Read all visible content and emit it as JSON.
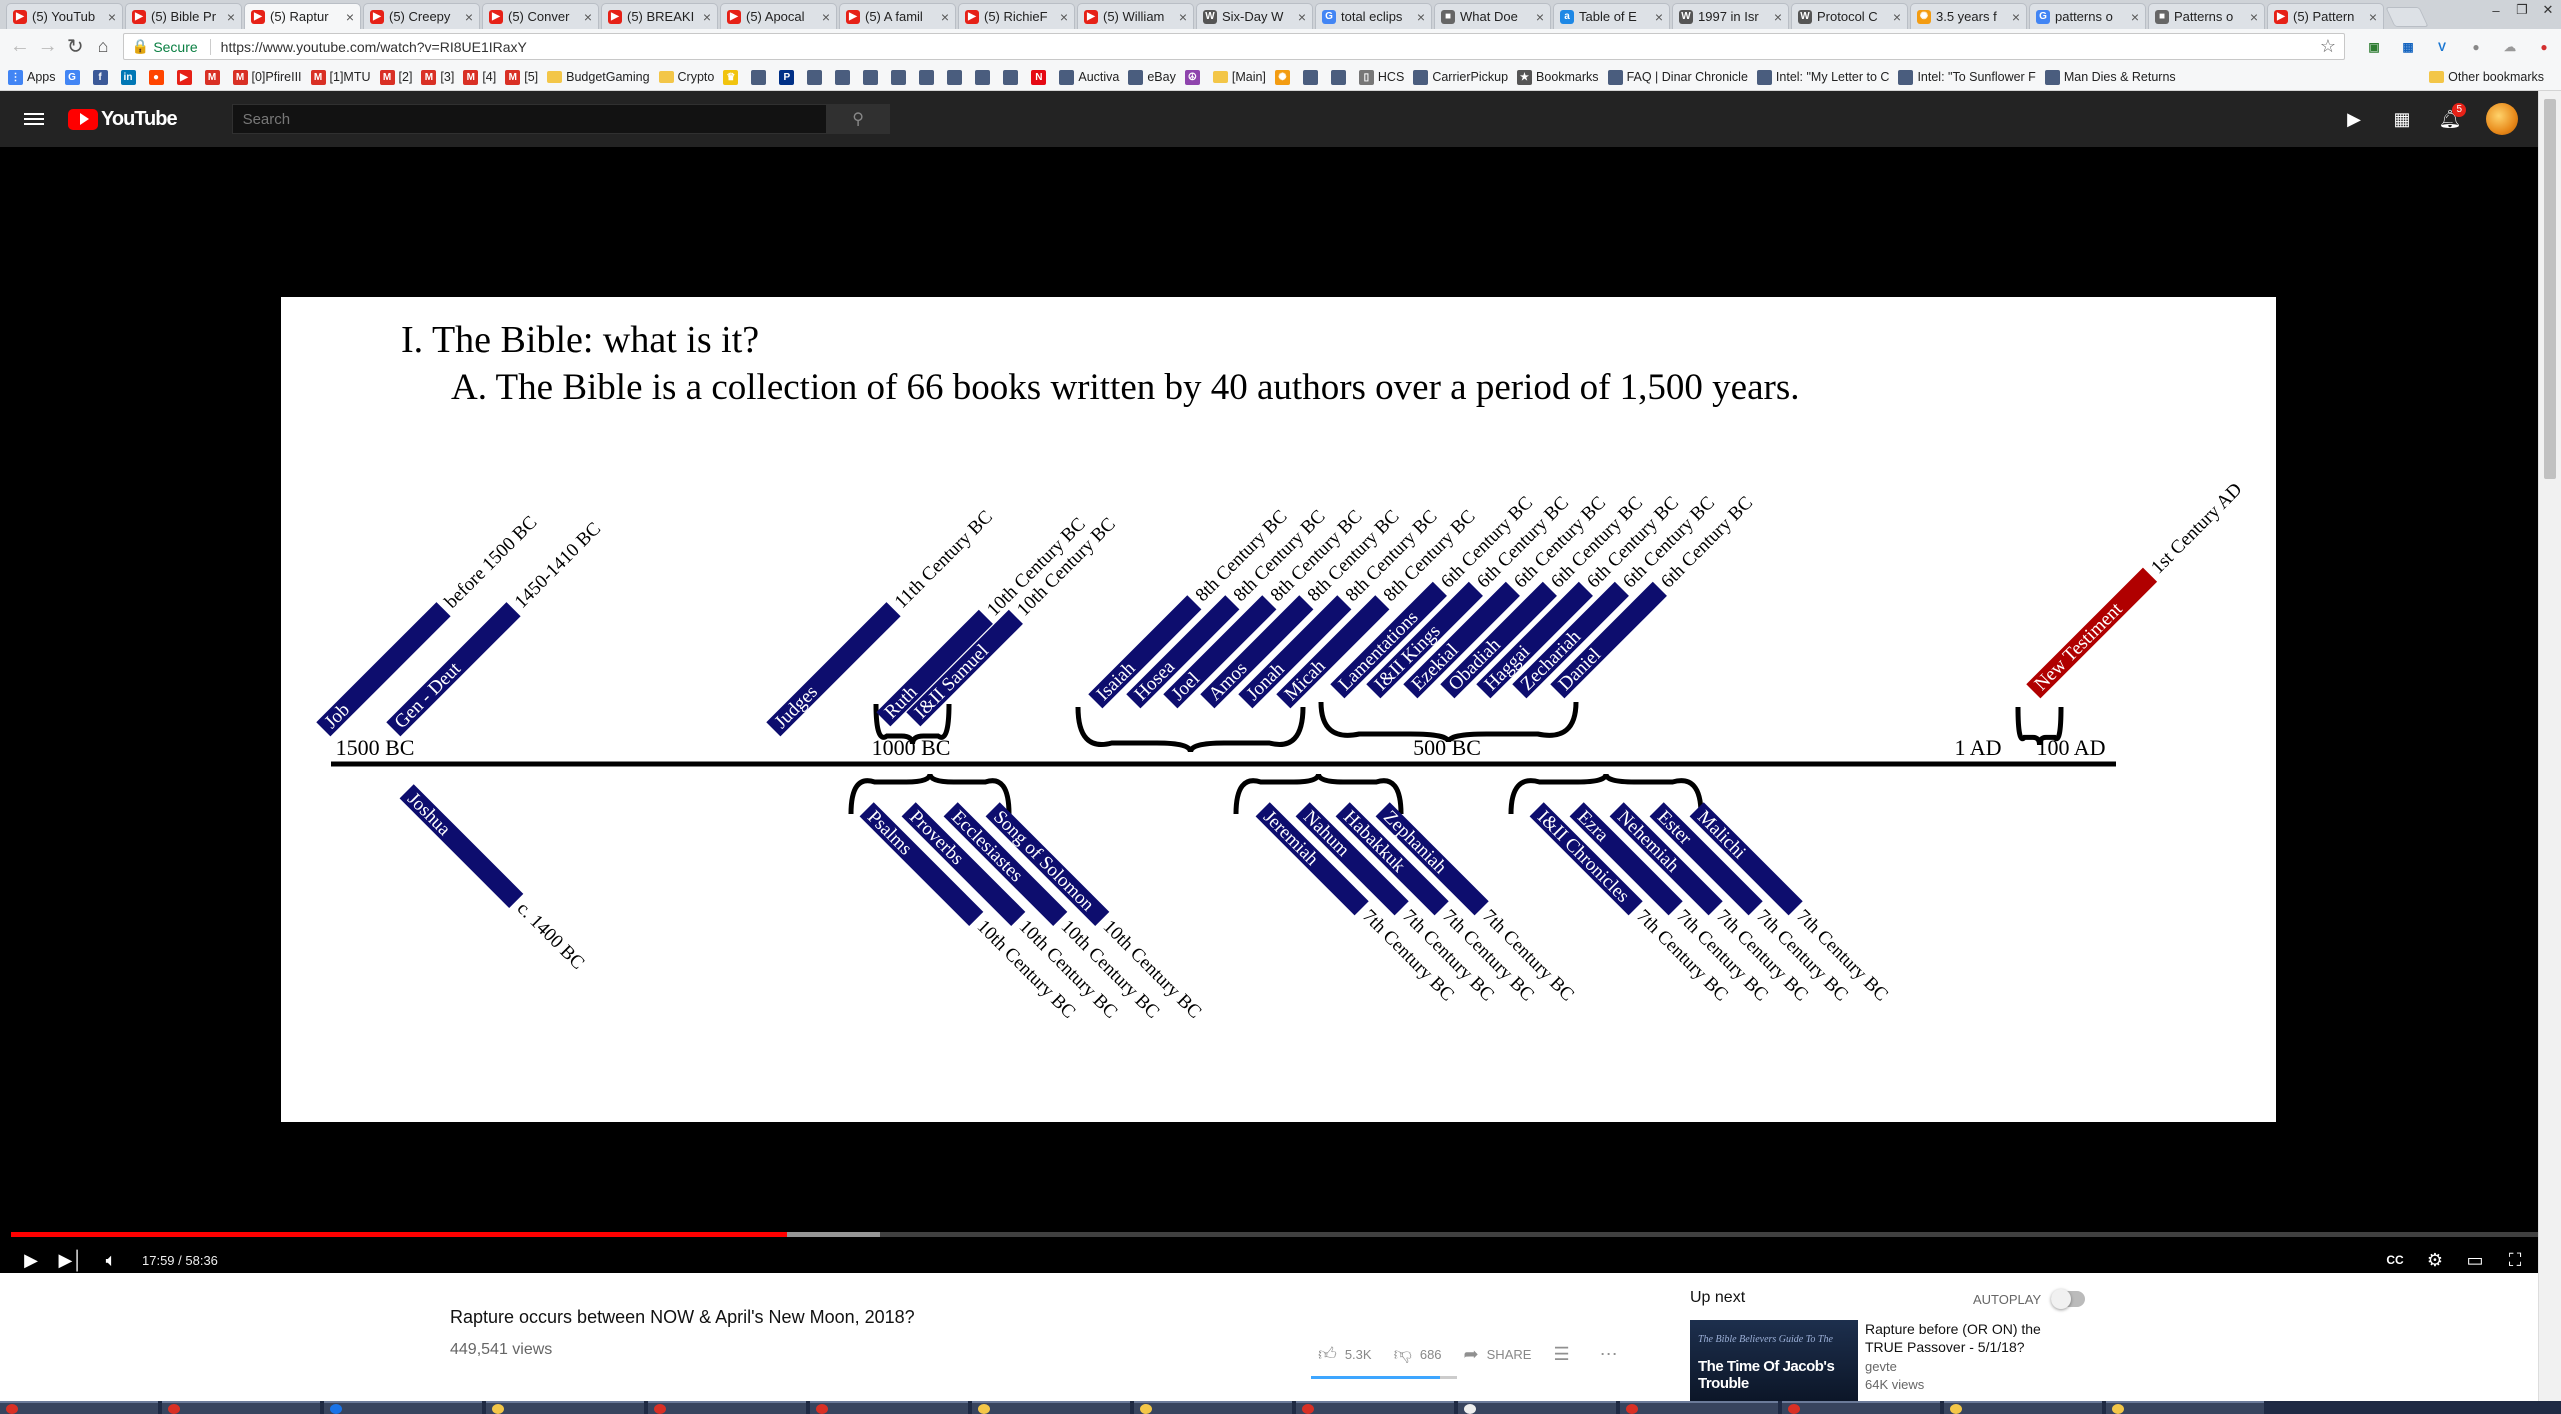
{
  "browser": {
    "tabs": [
      {
        "title": "(5) YouTub",
        "favicon": "youtube-icon",
        "active": false
      },
      {
        "title": "(5) Bible Pr",
        "favicon": "youtube-icon",
        "active": false
      },
      {
        "title": "(5) Raptur",
        "favicon": "youtube-icon",
        "active": true
      },
      {
        "title": "(5) Creepy",
        "favicon": "youtube-icon",
        "active": false
      },
      {
        "title": "(5) Conver",
        "favicon": "youtube-icon",
        "active": false
      },
      {
        "title": "(5) BREAKI",
        "favicon": "youtube-icon",
        "active": false
      },
      {
        "title": "(5) Apocal",
        "favicon": "youtube-icon",
        "active": false
      },
      {
        "title": "(5) A famil",
        "favicon": "youtube-icon",
        "active": false
      },
      {
        "title": "(5) RichieF",
        "favicon": "youtube-icon",
        "active": false
      },
      {
        "title": "(5) William",
        "favicon": "youtube-icon",
        "active": false
      },
      {
        "title": "Six-Day W",
        "favicon": "wikipedia-icon",
        "active": false
      },
      {
        "title": "total eclips",
        "favicon": "google-icon",
        "active": false
      },
      {
        "title": "What Doe",
        "favicon": "site-icon",
        "active": false
      },
      {
        "title": "Table of E",
        "favicon": "az-icon",
        "active": false
      },
      {
        "title": "1997 in Isr",
        "favicon": "wikipedia-icon",
        "active": false
      },
      {
        "title": "Protocol C",
        "favicon": "wikipedia-icon",
        "active": false
      },
      {
        "title": "3.5 years f",
        "favicon": "sun-icon",
        "active": false
      },
      {
        "title": "patterns o",
        "favicon": "google-icon",
        "active": false
      },
      {
        "title": "Patterns o",
        "favicon": "site-icon",
        "active": false
      },
      {
        "title": "(5) Pattern",
        "favicon": "youtube-icon",
        "active": false
      }
    ],
    "secure_label": "Secure",
    "url": "https://www.youtube.com/watch?v=RI8UE1IRaxY",
    "bookmarks": [
      {
        "label": "Apps",
        "icon": "apps-icon"
      },
      {
        "label": "",
        "icon": "google-icon"
      },
      {
        "label": "",
        "icon": "facebook-icon"
      },
      {
        "label": "",
        "icon": "linkedin-icon"
      },
      {
        "label": "",
        "icon": "reddit-icon"
      },
      {
        "label": "",
        "icon": "youtube-icon"
      },
      {
        "label": "",
        "icon": "gmail-icon"
      },
      {
        "label": "[0]PfireIII",
        "icon": "gmail-icon"
      },
      {
        "label": "[1]MTU",
        "icon": "gmail-icon"
      },
      {
        "label": "[2]",
        "icon": "gmail-icon"
      },
      {
        "label": "[3]",
        "icon": "gmail-icon"
      },
      {
        "label": "[4]",
        "icon": "gmail-icon"
      },
      {
        "label": "[5]",
        "icon": "gmail-icon"
      },
      {
        "label": "BudgetGaming",
        "icon": "folder-icon"
      },
      {
        "label": "Crypto",
        "icon": "folder-icon"
      },
      {
        "label": "",
        "icon": "crown-icon"
      },
      {
        "label": "",
        "icon": "site-icon"
      },
      {
        "label": "",
        "icon": "paypal-icon"
      },
      {
        "label": "",
        "icon": "site-icon"
      },
      {
        "label": "",
        "icon": "site-icon"
      },
      {
        "label": "",
        "icon": "site-icon"
      },
      {
        "label": "",
        "icon": "site-icon"
      },
      {
        "label": "",
        "icon": "site-icon"
      },
      {
        "label": "",
        "icon": "site-icon"
      },
      {
        "label": "",
        "icon": "site-icon"
      },
      {
        "label": "",
        "icon": "site-icon"
      },
      {
        "label": "",
        "icon": "netflix-icon"
      },
      {
        "label": "Auctiva",
        "icon": "site-icon"
      },
      {
        "label": "eBay",
        "icon": "site-icon"
      },
      {
        "label": "",
        "icon": "peace-icon"
      },
      {
        "label": "[Main]",
        "icon": "folder-icon"
      },
      {
        "label": "",
        "icon": "sun-icon"
      },
      {
        "label": "",
        "icon": "site-icon"
      },
      {
        "label": "",
        "icon": "site-icon"
      },
      {
        "label": "HCS",
        "icon": "page-icon"
      },
      {
        "label": "CarrierPickup",
        "icon": "site-icon"
      },
      {
        "label": "Bookmarks",
        "icon": "star-icon"
      },
      {
        "label": "FAQ | Dinar Chronicle",
        "icon": "site-icon"
      },
      {
        "label": "Intel: \"My Letter to C",
        "icon": "site-icon"
      },
      {
        "label": "Intel: \"To Sunflower F",
        "icon": "site-icon"
      },
      {
        "label": "Man Dies & Returns",
        "icon": "site-icon"
      }
    ],
    "other_bookmarks": "Other bookmarks"
  },
  "youtube": {
    "logo_text": "YouTube",
    "search_placeholder": "Search",
    "notification_count": "5"
  },
  "slide": {
    "heading": "I. The Bible: what is it?",
    "subheading": "A. The Bible is a collection of 66 books written by 40 authors over a period of 1,500 years.",
    "axis_labels": [
      "1500 BC",
      "1000 BC",
      "500 BC",
      "1 AD",
      "100 AD"
    ],
    "books_above": [
      {
        "name": "Job",
        "date": "before 1500 BC",
        "color": "#0d0d6e"
      },
      {
        "name": "Gen - Deut",
        "date": "1450-1410 BC",
        "color": "#0d0d6e"
      },
      {
        "name": "Judges",
        "date": "11th Century BC",
        "color": "#0d0d6e"
      },
      {
        "name": "Ruth",
        "date": "10th Century BC",
        "color": "#0d0d6e"
      },
      {
        "name": "I&II Samuel",
        "date": "10th Century BC",
        "color": "#0d0d6e"
      },
      {
        "name": "Isaiah",
        "date": "8th Century BC",
        "color": "#0d0d6e"
      },
      {
        "name": "Hosea",
        "date": "8th Century BC",
        "color": "#0d0d6e"
      },
      {
        "name": "Joel",
        "date": "8th Century BC",
        "color": "#0d0d6e"
      },
      {
        "name": "Amos",
        "date": "8th Century BC",
        "color": "#0d0d6e"
      },
      {
        "name": "Jonah",
        "date": "8th Century BC",
        "color": "#0d0d6e"
      },
      {
        "name": "Micah",
        "date": "8th Century BC",
        "color": "#0d0d6e"
      },
      {
        "name": "Lamentations",
        "date": "6th Century BC",
        "color": "#0d0d6e"
      },
      {
        "name": "I&II Kings",
        "date": "6th Century BC",
        "color": "#0d0d6e"
      },
      {
        "name": "Ezekial",
        "date": "6th Century BC",
        "color": "#0d0d6e"
      },
      {
        "name": "Obadiah",
        "date": "6th Century BC",
        "color": "#0d0d6e"
      },
      {
        "name": "Haggai",
        "date": "6th Century BC",
        "color": "#0d0d6e"
      },
      {
        "name": "Zechariah",
        "date": "6th Century BC",
        "color": "#0d0d6e"
      },
      {
        "name": "Daniel",
        "date": "6th Century BC",
        "color": "#0d0d6e"
      },
      {
        "name": "New Testiment",
        "date": "1st Century AD",
        "color": "#b00000"
      }
    ],
    "books_below": [
      {
        "name": "Joshua",
        "date": "c. 1400 BC"
      },
      {
        "name": "Psalms",
        "date": "10th Century BC"
      },
      {
        "name": "Proverbs",
        "date": "10th Century BC"
      },
      {
        "name": "Ecclesiastes",
        "date": "10th Century BC"
      },
      {
        "name": "Song of Solomon",
        "date": "10th Century BC"
      },
      {
        "name": "Jeremiah",
        "date": "7th Century BC"
      },
      {
        "name": "Nahum",
        "date": "7th Century BC"
      },
      {
        "name": "Habakkuk",
        "date": "7th Century BC"
      },
      {
        "name": "Zephaniah",
        "date": "7th Century BC"
      },
      {
        "name": "I&II Chronicles",
        "date": "7th Century BC"
      },
      {
        "name": "Ezra",
        "date": "7th Century BC"
      },
      {
        "name": "Nehemiah",
        "date": "7th Century BC"
      },
      {
        "name": "Ester",
        "date": "7th Century BC"
      },
      {
        "name": "Malichi",
        "date": "7th Century BC"
      }
    ]
  },
  "player": {
    "time_display": "17:59 / 58:36",
    "played_fraction": 0.307,
    "buffered_fraction": 0.344
  },
  "video": {
    "title": "Rapture occurs between NOW & April's New Moon, 2018?",
    "views": "449,541 views",
    "likes": "5.3K",
    "dislikes": "686",
    "share_label": "SHARE",
    "like_ratio": 0.886
  },
  "sidebar": {
    "up_next_label": "Up next",
    "autoplay_label": "AUTOPLAY",
    "rec_title": "Rapture before (OR ON) the TRUE Passover - 5/1/18?",
    "rec_channel": "gevte",
    "rec_views": "64K views",
    "rec_thumb_small": "The Bible Believers Guide To The",
    "rec_thumb_text": "The Time Of Jacob's Trouble"
  },
  "colors": {
    "youtube_red": "#ff0000",
    "book_navy": "#0d0d6e",
    "new_testament_red": "#b00000",
    "header_dark": "#232323"
  }
}
